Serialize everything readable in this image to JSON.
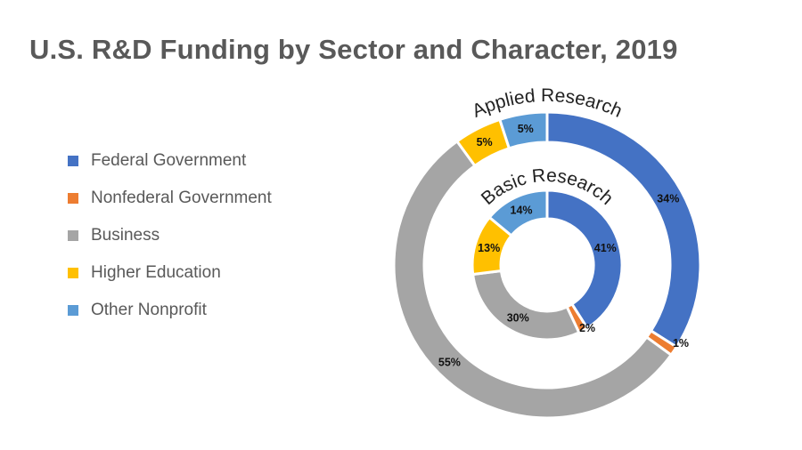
{
  "chart_data": {
    "type": "donut",
    "title": "U.S. R&D Funding by Sector and Character, 2019",
    "categories": [
      "Federal Government",
      "Nonfederal Government",
      "Business",
      "Higher Education",
      "Other Nonprofit"
    ],
    "colors": [
      "#4472C4",
      "#ED7D31",
      "#A5A5A5",
      "#FFC000",
      "#5B9BD5"
    ],
    "legend_position": "left",
    "series": [
      {
        "name": "Applied Research",
        "ring": "outer",
        "values": [
          34,
          1,
          55,
          5,
          5
        ],
        "labels": [
          "34%",
          "1%",
          "55%",
          "5%",
          "5%"
        ]
      },
      {
        "name": "Basic Research",
        "ring": "inner",
        "values": [
          41,
          2,
          30,
          13,
          14
        ],
        "labels": [
          "41%",
          "2%",
          "30%",
          "13%",
          "14%"
        ]
      }
    ]
  }
}
